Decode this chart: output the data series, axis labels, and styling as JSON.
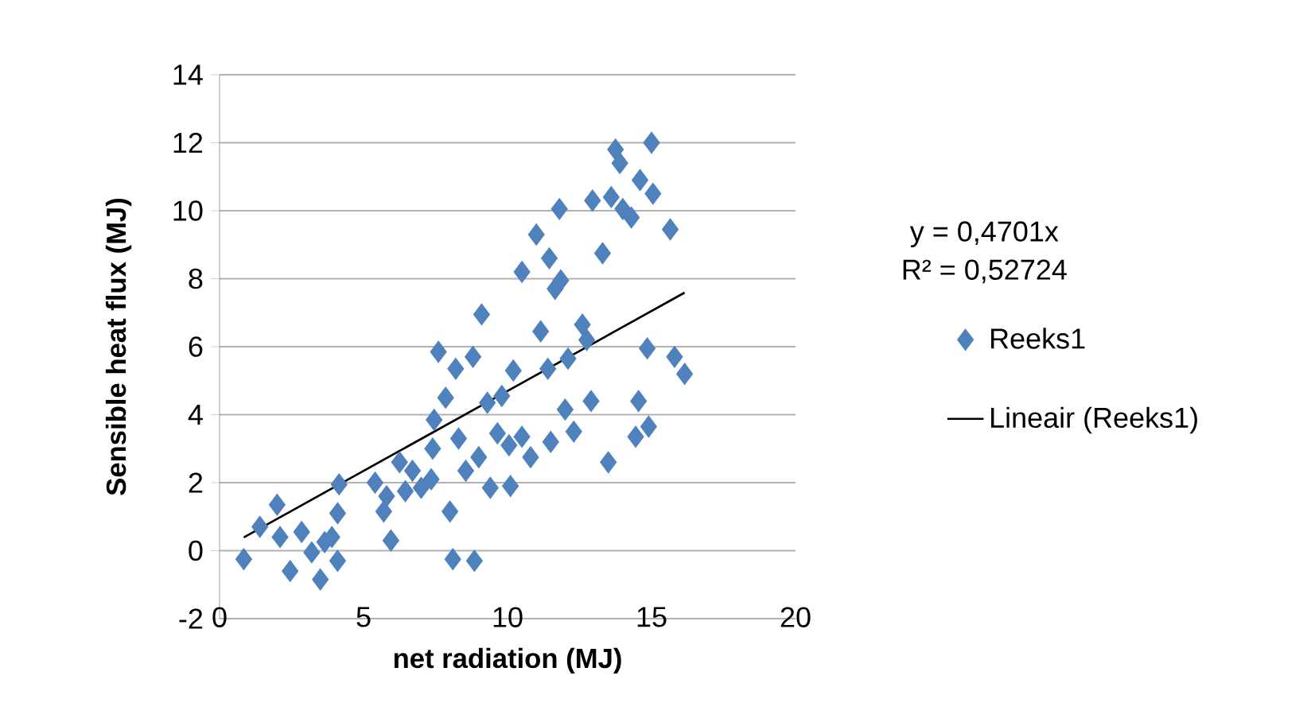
{
  "chart_data": {
    "type": "scatter",
    "xlabel": "net radiation (MJ)",
    "ylabel": "Sensible heat flux (MJ)",
    "xlim": [
      0,
      20
    ],
    "xticks": [
      0,
      5,
      10,
      15,
      20
    ],
    "ylim": [
      -2,
      14
    ],
    "yticks": [
      -2,
      0,
      2,
      4,
      6,
      8,
      10,
      12,
      14
    ],
    "grid": "y",
    "legend": "right",
    "marker": "diamond",
    "annotations": [
      "y = 0,4701x",
      "R² = 0,52724"
    ],
    "series": [
      {
        "name": "Reeks1",
        "color": "#4f81bd",
        "x": [
          0.84,
          1.4,
          2.0,
          2.1,
          2.45,
          2.85,
          3.2,
          3.5,
          3.65,
          3.9,
          4.1,
          4.1,
          4.15,
          5.4,
          5.7,
          5.95,
          5.8,
          6.25,
          6.45,
          6.7,
          7.0,
          7.35,
          7.4,
          7.45,
          7.6,
          7.85,
          8.0,
          8.1,
          8.2,
          8.3,
          8.55,
          8.8,
          8.85,
          9.0,
          9.1,
          9.3,
          9.4,
          9.65,
          9.8,
          10.05,
          10.1,
          10.2,
          10.5,
          10.5,
          10.8,
          11.0,
          11.15,
          11.4,
          11.45,
          11.5,
          11.65,
          11.8,
          11.85,
          12.0,
          12.1,
          12.3,
          12.6,
          12.75,
          12.9,
          12.95,
          13.3,
          13.5,
          13.6,
          13.75,
          13.9,
          14.0,
          14.3,
          14.45,
          14.55,
          14.6,
          14.85,
          14.9,
          15.0,
          15.05,
          15.65,
          15.8,
          16.15
        ],
        "values": [
          -0.25,
          0.7,
          1.35,
          0.4,
          -0.6,
          0.55,
          -0.05,
          -0.85,
          0.25,
          0.4,
          -0.3,
          1.1,
          1.95,
          2.0,
          1.15,
          0.3,
          1.6,
          2.6,
          1.75,
          2.35,
          1.85,
          2.1,
          3.0,
          3.85,
          5.85,
          4.5,
          1.15,
          -0.25,
          5.35,
          3.3,
          2.35,
          5.7,
          -0.3,
          2.75,
          6.95,
          4.35,
          1.85,
          3.45,
          4.55,
          3.1,
          1.9,
          5.3,
          3.35,
          8.2,
          2.75,
          9.3,
          6.45,
          5.35,
          8.6,
          3.2,
          7.7,
          10.05,
          7.95,
          4.15,
          5.65,
          3.5,
          6.65,
          6.2,
          4.4,
          10.3,
          8.75,
          2.6,
          10.4,
          11.8,
          11.4,
          10.05,
          9.8,
          3.35,
          4.4,
          10.9,
          5.95,
          3.65,
          12.0,
          10.5,
          9.45,
          5.7,
          5.2
        ]
      },
      {
        "name": "Lineair (Reeks1)",
        "color": "#000000",
        "type": "line",
        "marker": "none",
        "x": [
          0.84,
          16.15
        ],
        "values": [
          0.39,
          7.59
        ]
      }
    ]
  }
}
